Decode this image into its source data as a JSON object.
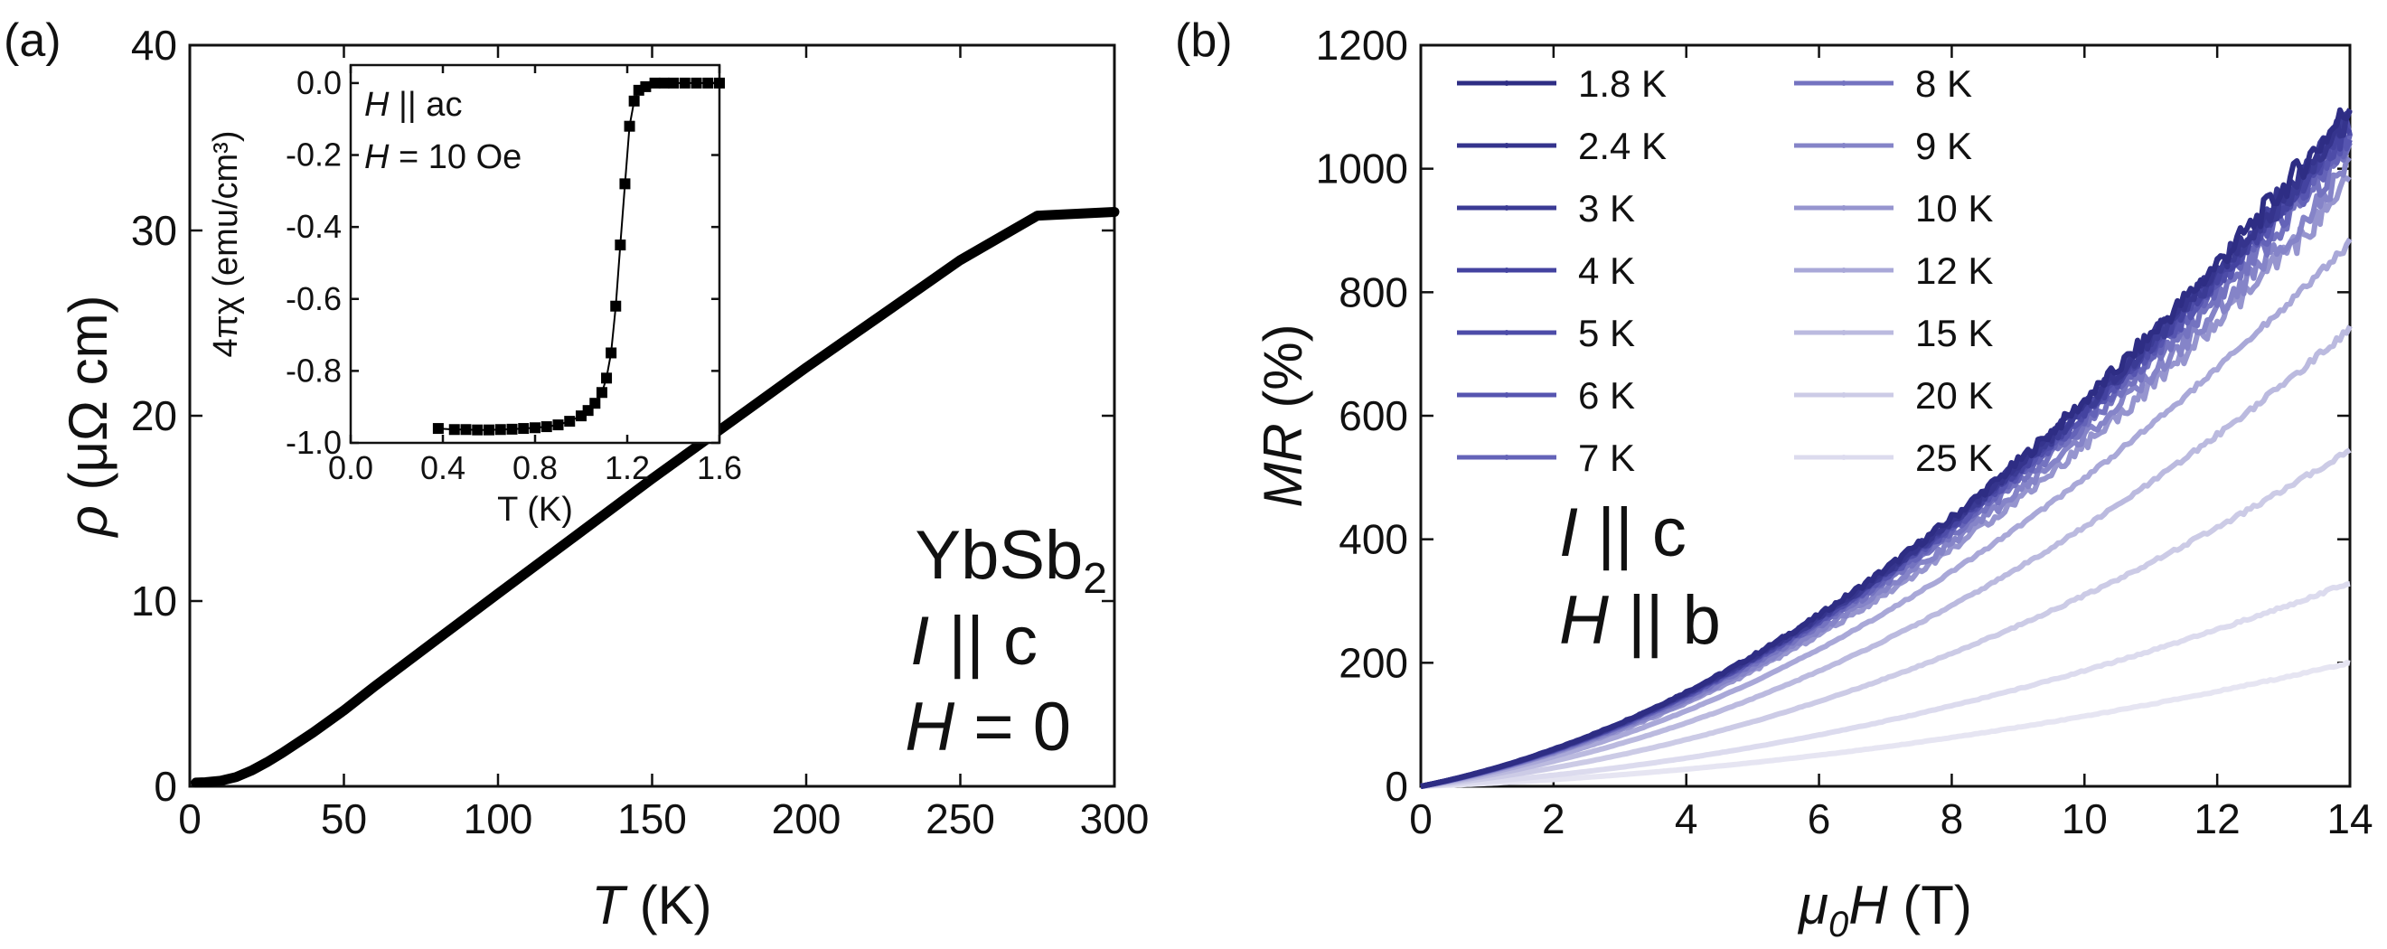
{
  "chart_data": [
    {
      "panel": "(a)",
      "type": "line",
      "xlabel": {
        "italic": "T",
        "rest": " (K)"
      },
      "ylabel": {
        "italic": "ρ",
        "rest": " (μΩ cm)"
      },
      "xlim": [
        0,
        300
      ],
      "ylim": [
        0,
        40
      ],
      "xticks": [
        "0",
        "50",
        "100",
        "150",
        "200",
        "250",
        "300"
      ],
      "yticks": [
        "0",
        "10",
        "20",
        "30",
        "40"
      ],
      "annotations": {
        "compound_base": "YbSb",
        "compound_sub": "2",
        "current_italic": "I",
        "current_rest": " || c",
        "field_italic": "H",
        "field_rest": " = 0"
      },
      "series": [
        {
          "name": "rho(T)",
          "color": "#000000",
          "x": [
            2,
            5,
            10,
            15,
            20,
            25,
            30,
            40,
            50,
            60,
            80,
            100,
            125,
            150,
            175,
            200,
            225,
            250,
            275,
            300
          ],
          "y": [
            0.2,
            0.22,
            0.3,
            0.5,
            0.85,
            1.3,
            1.8,
            2.9,
            4.1,
            5.4,
            7.9,
            10.4,
            13.5,
            16.6,
            19.6,
            22.6,
            25.5,
            28.4,
            30.8,
            31.0
          ]
        }
      ],
      "inset": {
        "type": "scatter",
        "xlabel": "T (K)",
        "ylabel": "4πχ (emu/cm³)",
        "xlim": [
          0.0,
          1.6
        ],
        "ylim": [
          -1.0,
          0.05
        ],
        "xticks": [
          "0.0",
          "0.4",
          "0.8",
          "1.2",
          "1.6"
        ],
        "yticks": [
          "0.0",
          "-0.2",
          "-0.4",
          "-0.6",
          "-0.8",
          "-1.0"
        ],
        "annotations": {
          "line1_italic": "H",
          "line1_rest": " || ac",
          "line2_italic": "H",
          "line2_rest": " = 10 Oe"
        },
        "series": [
          {
            "name": "chi(T)",
            "color": "#000000",
            "x": [
              0.38,
              0.45,
              0.5,
              0.55,
              0.6,
              0.65,
              0.7,
              0.75,
              0.8,
              0.85,
              0.9,
              0.95,
              1.0,
              1.03,
              1.06,
              1.09,
              1.11,
              1.13,
              1.15,
              1.17,
              1.19,
              1.21,
              1.23,
              1.25,
              1.28,
              1.32,
              1.36,
              1.4,
              1.45,
              1.5,
              1.55,
              1.6
            ],
            "y": [
              -0.96,
              -0.963,
              -0.963,
              -0.964,
              -0.964,
              -0.963,
              -0.962,
              -0.96,
              -0.958,
              -0.955,
              -0.95,
              -0.94,
              -0.925,
              -0.91,
              -0.89,
              -0.86,
              -0.82,
              -0.75,
              -0.62,
              -0.45,
              -0.28,
              -0.12,
              -0.05,
              -0.02,
              -0.01,
              0.0,
              0.0,
              0.0,
              0.0,
              0.0,
              0.0,
              0.0
            ]
          }
        ]
      }
    },
    {
      "panel": "(b)",
      "type": "line",
      "xlabel": {
        "pre": "μ",
        "sub": "0",
        "italic": "H",
        "rest": " (T)"
      },
      "ylabel": {
        "italic": "MR",
        "rest": " (%)"
      },
      "xlim": [
        0,
        14
      ],
      "ylim": [
        0,
        1200
      ],
      "xticks": [
        "0",
        "2",
        "4",
        "6",
        "8",
        "10",
        "12",
        "14"
      ],
      "yticks": [
        "0",
        "200",
        "400",
        "600",
        "800",
        "1000",
        "1200"
      ],
      "annotations": {
        "current_italic": "I",
        "current_rest": " || c",
        "field_italic": "H",
        "field_rest": " || b"
      },
      "legend": {
        "placement": "top-left",
        "columns": 2
      },
      "series": [
        {
          "name": "1.8 K",
          "color": "#2e2d84",
          "end": 1100
        },
        {
          "name": "2.4 K",
          "color": "#35348d",
          "end": 1090
        },
        {
          "name": "3 K",
          "color": "#3b3b95",
          "end": 1080
        },
        {
          "name": "4 K",
          "color": "#4443a0",
          "end": 1075
        },
        {
          "name": "5 K",
          "color": "#4d4ca8",
          "end": 1070
        },
        {
          "name": "6 K",
          "color": "#5655b0",
          "end": 1060
        },
        {
          "name": "7 K",
          "color": "#6463b8",
          "end": 1050
        },
        {
          "name": "8 K",
          "color": "#7473c0",
          "end": 1030
        },
        {
          "name": "9 K",
          "color": "#8584c8",
          "end": 1000
        },
        {
          "name": "10 K",
          "color": "#9695cf",
          "end": 975
        },
        {
          "name": "12 K",
          "color": "#a9a8d8",
          "end": 880
        },
        {
          "name": "15 K",
          "color": "#bbbadf",
          "end": 740
        },
        {
          "name": "20 K",
          "color": "#cccbe6",
          "end": 545
        },
        {
          "name": "25 K",
          "color": "#dcdbee",
          "end": 330
        },
        {
          "name": "",
          "color": "#e6e5f2",
          "end": 200
        }
      ]
    }
  ]
}
